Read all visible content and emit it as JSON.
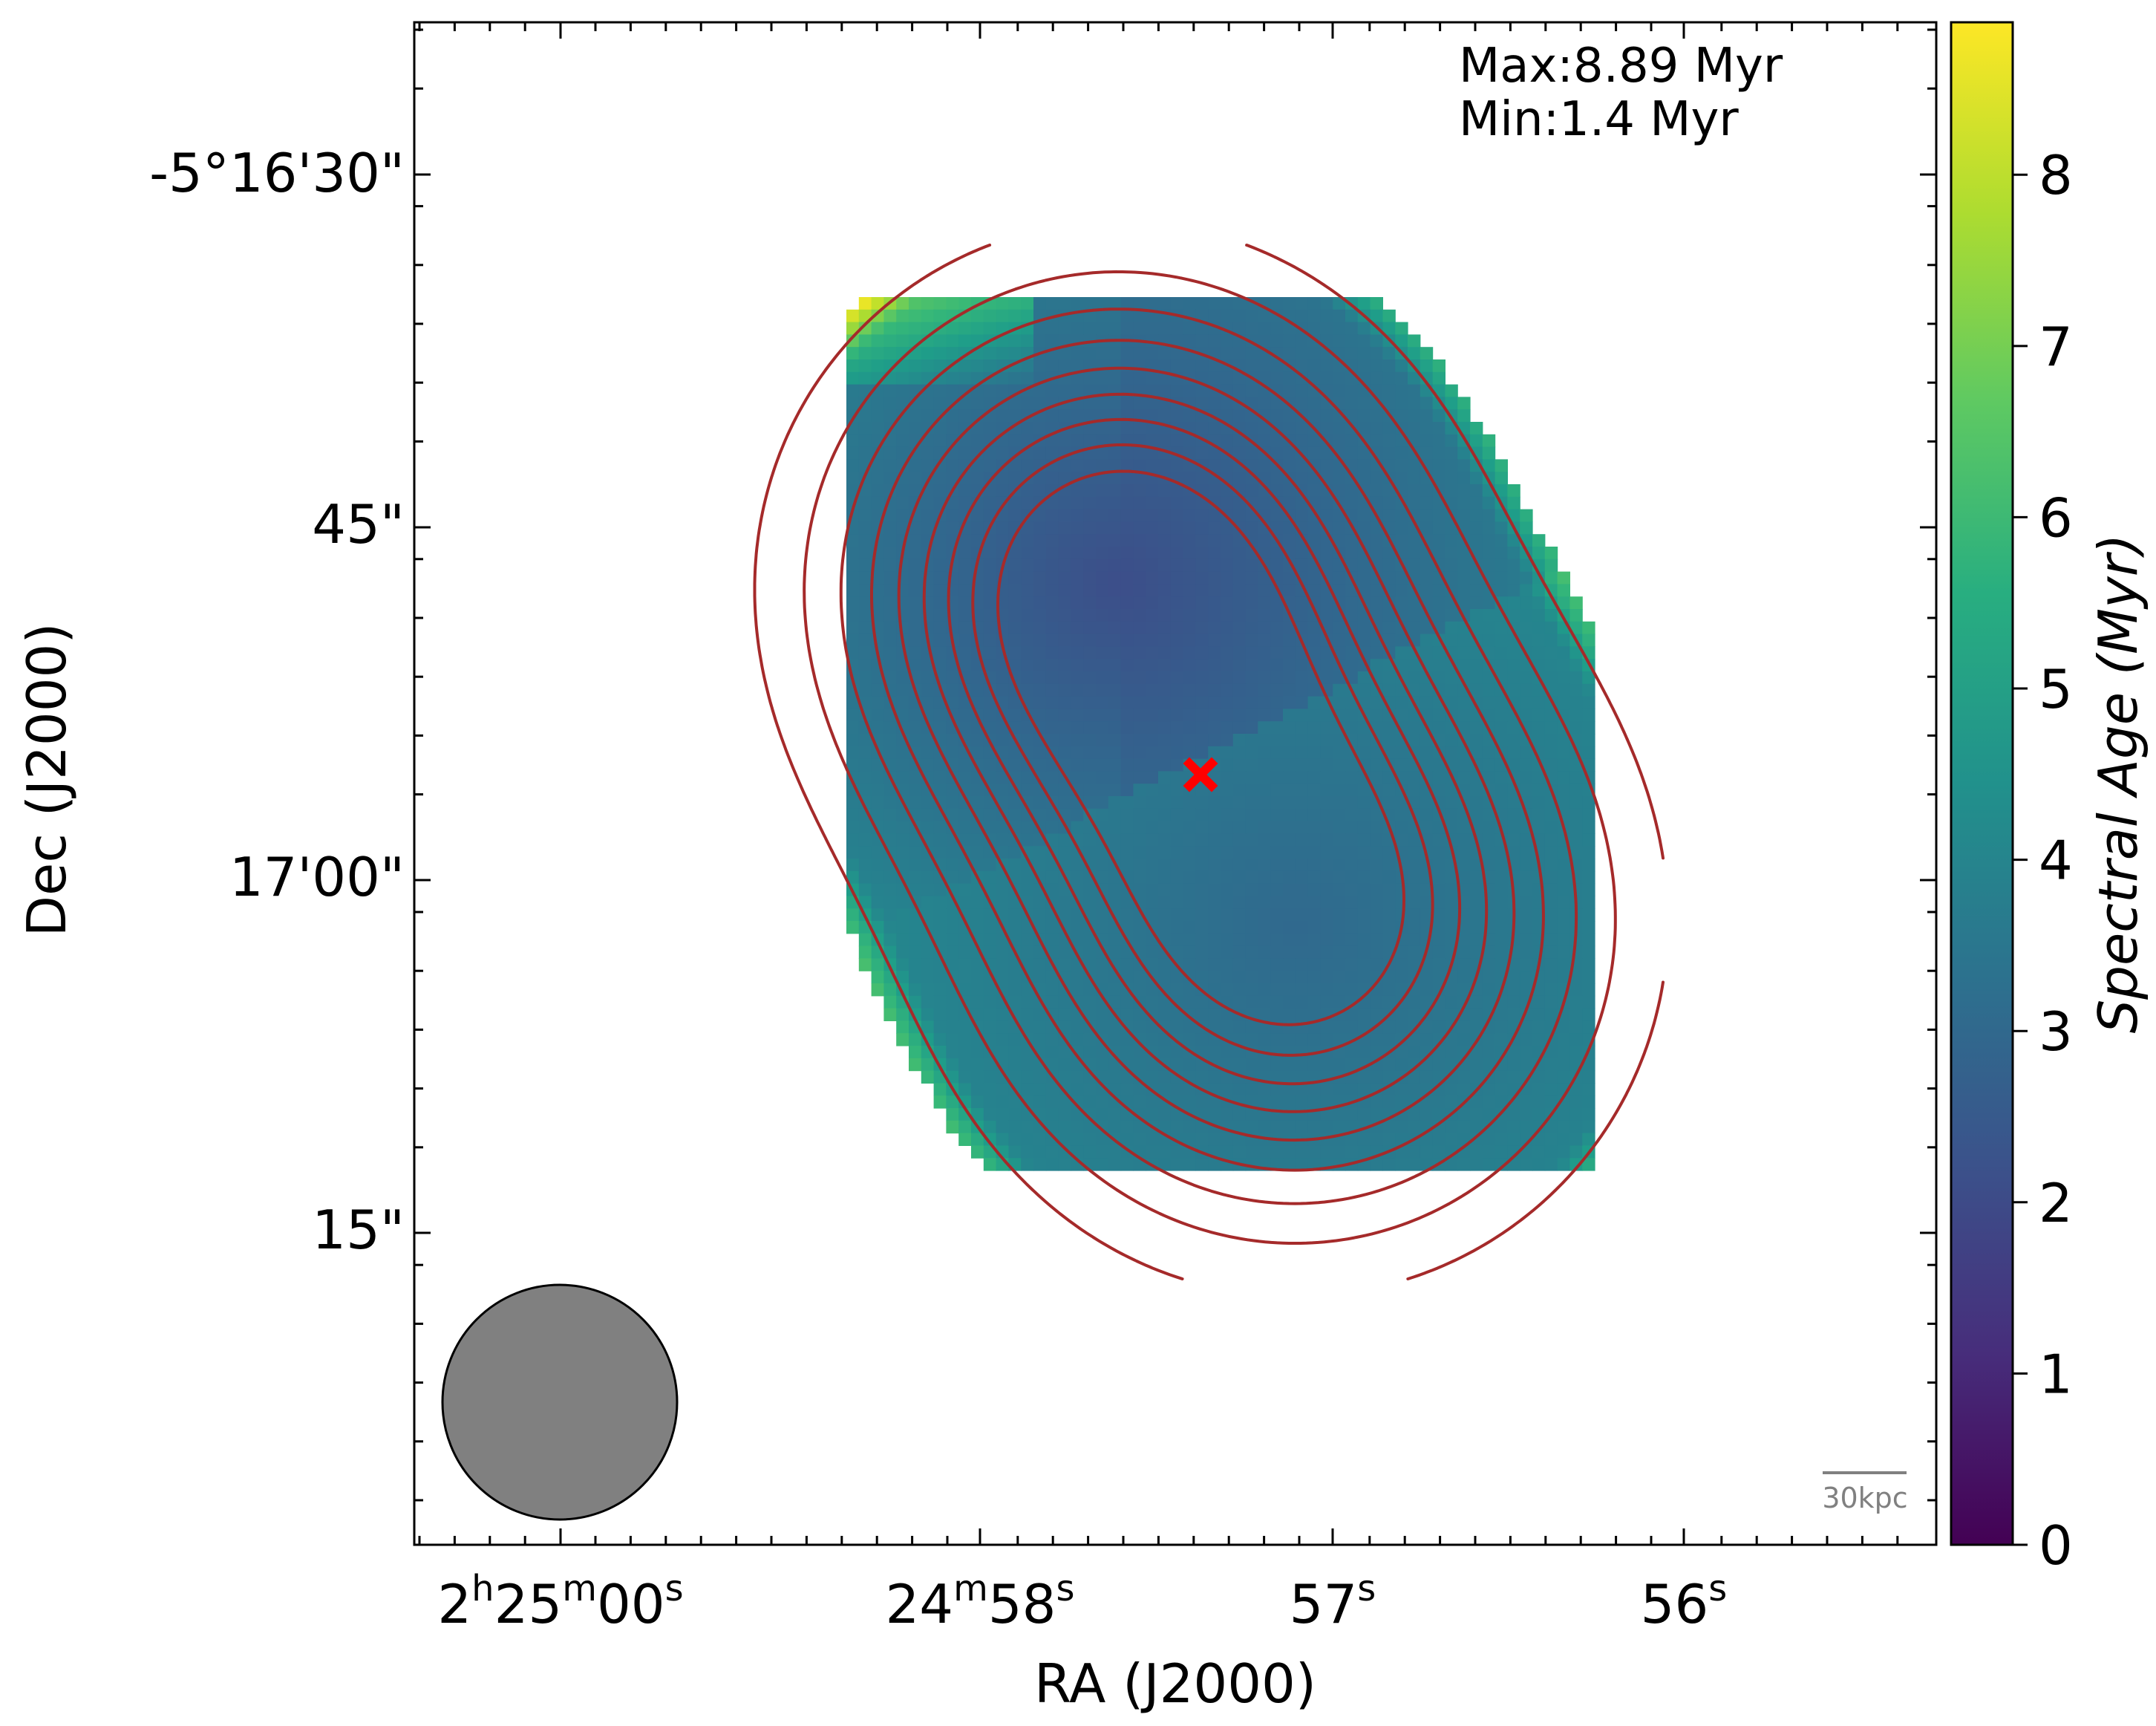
{
  "chart_data": {
    "type": "heatmap",
    "title": "",
    "xlabel": "RA (J2000)",
    "ylabel": "Dec (J2000)",
    "x_ticks": [
      {
        "h": "2",
        "m": "25",
        "s": "00"
      },
      {
        "h": "",
        "m": "24",
        "s": "58"
      },
      {
        "h": "",
        "m": "",
        "s": "57"
      },
      {
        "h": "",
        "m": "",
        "s": "56"
      }
    ],
    "y_ticks": [
      "-5°16'30\"",
      "45\"",
      "17'00\"",
      "15\""
    ],
    "annotations": {
      "max": "Max:8.89 Myr",
      "min": "Min:1.4 Myr",
      "scalebar": "30kpc"
    },
    "colorbar": {
      "label": "Spectral Age (Myr)",
      "range": [
        0,
        8.89
      ],
      "ticks": [
        "0",
        "1",
        "2",
        "3",
        "4",
        "5",
        "6",
        "7",
        "8"
      ],
      "colormap": "viridis"
    },
    "map": {
      "lobes": [
        {
          "name": "north",
          "age_center": 2.1
        },
        {
          "name": "south",
          "age_center": 3.0
        }
      ],
      "age_range": [
        1.4,
        8.89
      ],
      "contour_levels": 9,
      "contour_color": "#a52a2a",
      "core_marker": {
        "symbol": "x",
        "color": "#ff0000"
      },
      "beam_color": "#808080"
    }
  }
}
